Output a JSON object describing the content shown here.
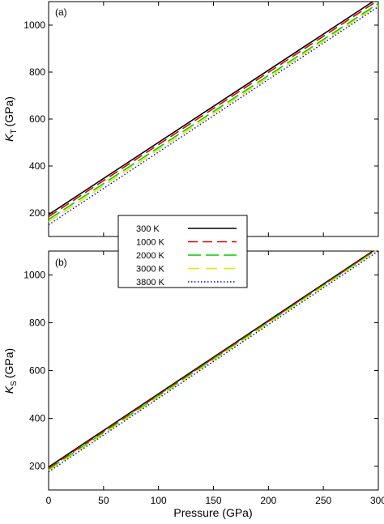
{
  "chart_data": [
    {
      "type": "line",
      "panel_label": "(a)",
      "ylabel": "K",
      "ylabel_sub": "T",
      "ylabel_unit": "(GPa)",
      "xlabel": "",
      "xlim": [
        0,
        300
      ],
      "ylim": [
        100,
        1100
      ],
      "yticks": [
        200,
        400,
        600,
        800,
        1000
      ],
      "xticks": [
        0,
        50,
        100,
        150,
        200,
        250,
        300
      ],
      "show_xtick_labels": false,
      "series": [
        {
          "name": "300 K",
          "color": "#000000",
          "style": "solid",
          "x": [
            0,
            295
          ],
          "y": [
            193,
            1100
          ]
        },
        {
          "name": "1000 K",
          "color": "#e00000",
          "style": "dashed",
          "x": [
            0,
            298
          ],
          "y": [
            184,
            1100
          ]
        },
        {
          "name": "2000 K",
          "color": "#00cc00",
          "style": "longdash",
          "x": [
            0,
            300
          ],
          "y": [
            172,
            1092
          ]
        },
        {
          "name": "3000 K",
          "color": "#e6e600",
          "style": "longdash2",
          "x": [
            0,
            300
          ],
          "y": [
            162,
            1085
          ]
        },
        {
          "name": "3800 K",
          "color": "#0000cc",
          "style": "dotted",
          "x": [
            0,
            300
          ],
          "y": [
            150,
            1078
          ]
        }
      ]
    },
    {
      "type": "line",
      "panel_label": "(b)",
      "ylabel": "K",
      "ylabel_sub": "S",
      "ylabel_unit": "(GPa)",
      "xlabel": "Pressure (GPa)",
      "xlim": [
        0,
        300
      ],
      "ylim": [
        100,
        1100
      ],
      "yticks": [
        200,
        400,
        600,
        800,
        1000
      ],
      "xticks": [
        0,
        50,
        100,
        150,
        200,
        250,
        300
      ],
      "show_xtick_labels": true,
      "series": [
        {
          "name": "300 K",
          "color": "#000000",
          "style": "solid",
          "x": [
            0,
            295
          ],
          "y": [
            196,
            1100
          ]
        },
        {
          "name": "1000 K",
          "color": "#e00000",
          "style": "dashed",
          "x": [
            0,
            296
          ],
          "y": [
            192,
            1100
          ]
        },
        {
          "name": "2000 K",
          "color": "#00cc00",
          "style": "longdash",
          "x": [
            0,
            297
          ],
          "y": [
            186,
            1100
          ]
        },
        {
          "name": "3000 K",
          "color": "#e6e600",
          "style": "longdash2",
          "x": [
            0,
            298
          ],
          "y": [
            181,
            1100
          ]
        },
        {
          "name": "3800 K",
          "color": "#0000cc",
          "style": "dotted",
          "x": [
            0,
            300
          ],
          "y": [
            176,
            1100
          ]
        }
      ]
    }
  ],
  "legend": {
    "placement": "between-panels",
    "entries": [
      "300 K",
      "1000 K",
      "2000 K",
      "3000 K",
      "3800 K"
    ]
  }
}
